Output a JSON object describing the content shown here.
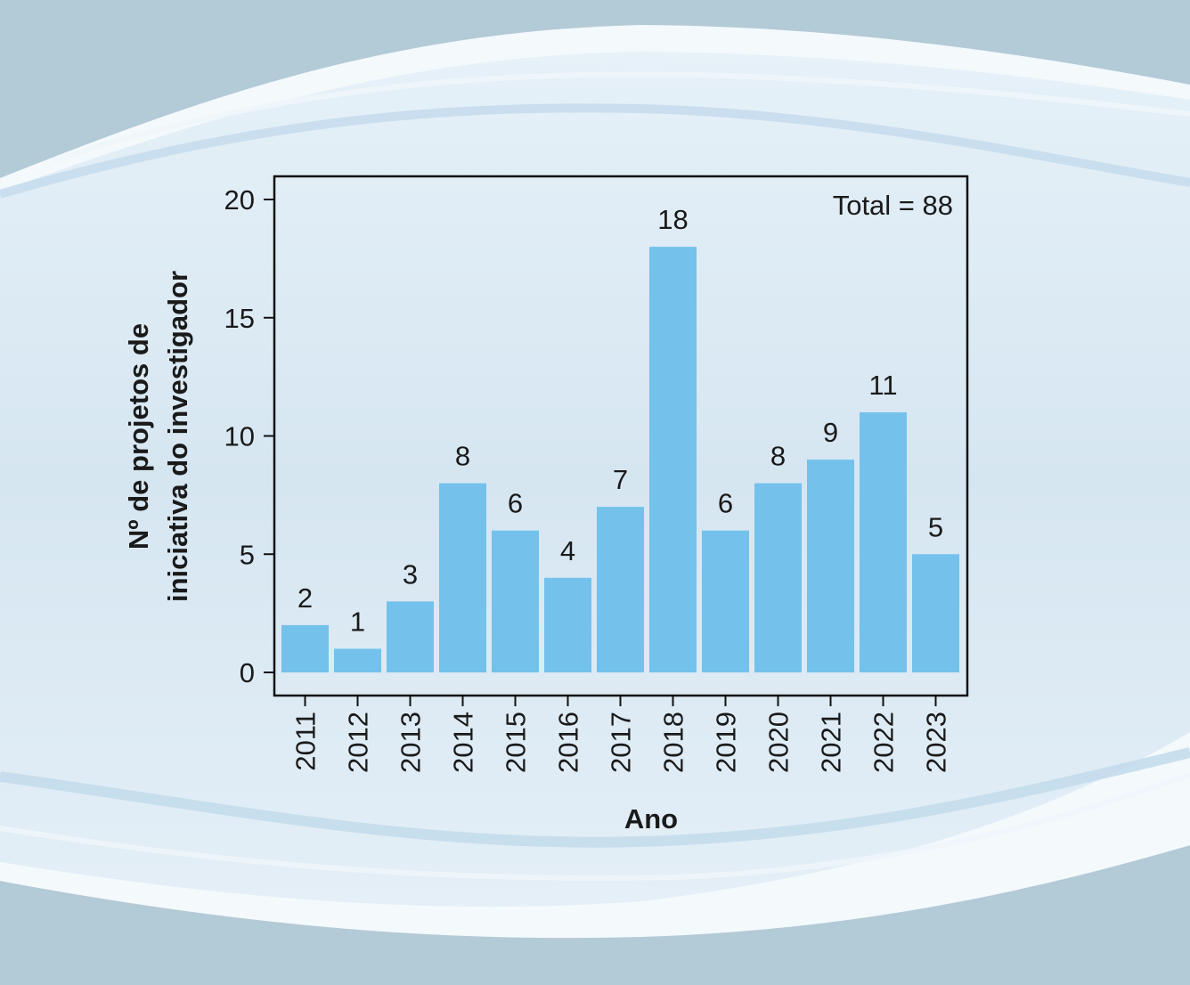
{
  "colors": {
    "page_background": "#b3cad7",
    "panel_background": "#d9e8f3",
    "bar_fill": "#74c1eb",
    "axis": "#111111"
  },
  "chart_data": {
    "type": "bar",
    "categories": [
      "2011",
      "2012",
      "2013",
      "2014",
      "2015",
      "2016",
      "2017",
      "2018",
      "2019",
      "2020",
      "2021",
      "2022",
      "2023"
    ],
    "values": [
      2,
      1,
      3,
      8,
      6,
      4,
      7,
      18,
      6,
      8,
      9,
      11,
      5
    ],
    "xlabel": "Ano",
    "ylabel_lines": [
      "Nº de projetos de",
      "iniciativa do investigador"
    ],
    "ylim": [
      0,
      21
    ],
    "yticks": [
      0,
      5,
      10,
      15,
      20
    ],
    "annotation": "Total = 88",
    "grid": false,
    "data_labels": true
  }
}
